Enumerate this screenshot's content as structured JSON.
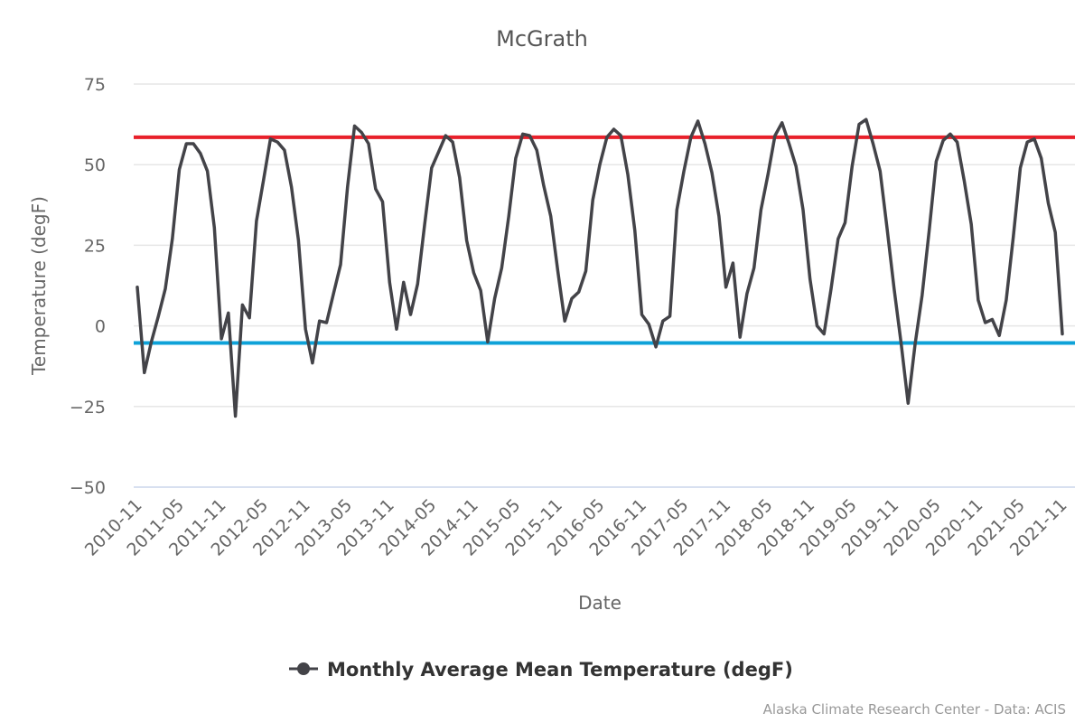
{
  "chart_data": {
    "type": "line",
    "title": "McGrath",
    "xlabel": "Date",
    "ylabel": "Temperature (degF)",
    "ylim": [
      -50,
      75
    ],
    "yticks": [
      75,
      50,
      25,
      0,
      -25,
      -50
    ],
    "xtick_labels": [
      "2010-11",
      "2011-05",
      "2011-11",
      "2012-05",
      "2012-11",
      "2013-05",
      "2013-11",
      "2014-05",
      "2014-11",
      "2015-05",
      "2015-11",
      "2016-05",
      "2016-11",
      "2017-05",
      "2017-11",
      "2018-05",
      "2018-11",
      "2019-05",
      "2019-11",
      "2020-05",
      "2020-11",
      "2021-05",
      "2021-11"
    ],
    "grid": true,
    "legend_position": "bottom-center",
    "start_month": "2010-11",
    "series": [
      {
        "name": "Monthly Average Mean Temperature (degF)",
        "color": "#434348",
        "values": [
          12,
          -14.5,
          -5,
          3,
          11.5,
          27,
          48.5,
          56.5,
          56.5,
          53.5,
          48,
          30.5,
          -4,
          4,
          -28,
          6.5,
          2.5,
          32.5,
          45,
          58,
          57,
          54.5,
          43,
          26.5,
          -1,
          -11.5,
          1.5,
          1,
          10,
          19,
          43,
          62,
          60,
          56.5,
          42.5,
          38.5,
          13.5,
          -1,
          13.5,
          3.5,
          13,
          31.5,
          49,
          54,
          59,
          57,
          46,
          26.5,
          16.5,
          11,
          -5,
          8.5,
          18,
          34,
          52,
          59.5,
          59,
          54.5,
          43.5,
          34,
          17,
          1.5,
          8.5,
          10.5,
          17,
          39,
          50,
          58.5,
          61,
          59,
          47,
          29.5,
          3.5,
          0.5,
          -6.5,
          1.5,
          3,
          36,
          48,
          58.5,
          63.5,
          56.5,
          47.5,
          34,
          12,
          19.5,
          -3.5,
          10,
          18,
          36,
          47,
          59,
          63,
          56.5,
          49.5,
          36,
          14.5,
          0,
          -2.5,
          11.5,
          27,
          32,
          49.5,
          62.5,
          64,
          56.5,
          48,
          30,
          11.5,
          -5.5,
          -24,
          -5.5,
          9.5,
          29.5,
          51,
          57.5,
          59.5,
          57,
          45,
          31.5,
          8,
          1,
          2,
          -3,
          8,
          27.5,
          49,
          57,
          58,
          52,
          38,
          29,
          -2.5
        ]
      }
    ],
    "reference_lines": [
      {
        "name": "upper-reference",
        "value": 58.5,
        "color": "#e8202a"
      },
      {
        "name": "lower-reference",
        "value": -5.3,
        "color": "#0ea2d8"
      }
    ],
    "legend": {
      "label": "Monthly Average Mean Temperature (degF)"
    },
    "credits": "Alaska Climate Research Center - Data: ACIS"
  }
}
